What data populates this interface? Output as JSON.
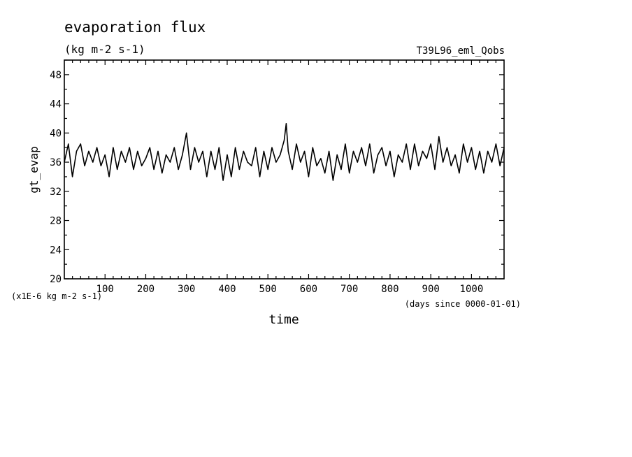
{
  "chart_data": {
    "type": "line",
    "title": "evaporation flux",
    "subtitle": "(kg m-2 s-1)",
    "run_label": "T39L96_eml_Qobs",
    "ylabel": "gt_evap",
    "xlabel": "time",
    "x_unit_label": "(days since 0000-01-01)",
    "y_unit_label": "(x1E-6 kg m-2 s-1)",
    "xlim": [
      0,
      1080
    ],
    "ylim": [
      20,
      50
    ],
    "x_ticks": [
      100,
      200,
      300,
      400,
      500,
      600,
      700,
      800,
      900,
      1000
    ],
    "y_ticks": [
      20,
      24,
      28,
      32,
      36,
      40,
      44,
      48
    ],
    "grid": false,
    "legend": "none",
    "line_color": "#000000",
    "series": [
      {
        "x": [
          0,
          10,
          20,
          30,
          40,
          50,
          60,
          70,
          80,
          90,
          100,
          110,
          120,
          130,
          140,
          150,
          160,
          170,
          180,
          190,
          200,
          210,
          220,
          230,
          240,
          250,
          260,
          270,
          280,
          290,
          300,
          310,
          320,
          330,
          340,
          350,
          360,
          370,
          380,
          390,
          400,
          410,
          420,
          430,
          440,
          450,
          460,
          470,
          480,
          490,
          500,
          510,
          520,
          530,
          540,
          545,
          550,
          560,
          570,
          580,
          590,
          600,
          610,
          620,
          630,
          640,
          650,
          660,
          670,
          680,
          690,
          700,
          710,
          720,
          730,
          740,
          750,
          760,
          770,
          780,
          790,
          800,
          810,
          820,
          830,
          840,
          850,
          860,
          870,
          880,
          890,
          900,
          910,
          920,
          930,
          940,
          950,
          960,
          970,
          980,
          990,
          1000,
          1010,
          1020,
          1030,
          1040,
          1050,
          1060,
          1070,
          1080
        ],
        "values": [
          36.0,
          38.5,
          34.0,
          37.5,
          38.5,
          35.5,
          37.5,
          36.0,
          38.0,
          35.5,
          37.0,
          34.0,
          38.0,
          35.0,
          37.5,
          36.0,
          38.0,
          35.0,
          37.5,
          35.5,
          36.5,
          38.0,
          35.0,
          37.5,
          34.5,
          37.0,
          36.0,
          38.0,
          35.0,
          37.0,
          40.0,
          35.0,
          38.0,
          36.0,
          37.5,
          34.0,
          37.5,
          35.0,
          38.0,
          33.5,
          37.0,
          34.0,
          38.0,
          35.0,
          37.5,
          36.0,
          35.5,
          38.0,
          34.0,
          37.5,
          35.0,
          38.0,
          36.0,
          37.0,
          39.0,
          41.3,
          37.5,
          35.0,
          38.5,
          36.0,
          37.5,
          34.0,
          38.0,
          35.5,
          36.5,
          34.5,
          37.5,
          33.5,
          37.0,
          35.0,
          38.5,
          34.5,
          37.5,
          36.0,
          38.0,
          35.5,
          38.5,
          34.5,
          37.0,
          38.0,
          35.5,
          37.5,
          34.0,
          37.0,
          36.0,
          38.5,
          35.0,
          38.5,
          35.5,
          37.5,
          36.5,
          38.5,
          35.0,
          39.5,
          36.0,
          38.0,
          35.5,
          37.0,
          34.5,
          38.5,
          36.0,
          38.0,
          35.0,
          37.5,
          34.5,
          37.5,
          36.0,
          38.5,
          35.5,
          38.0
        ]
      }
    ]
  }
}
